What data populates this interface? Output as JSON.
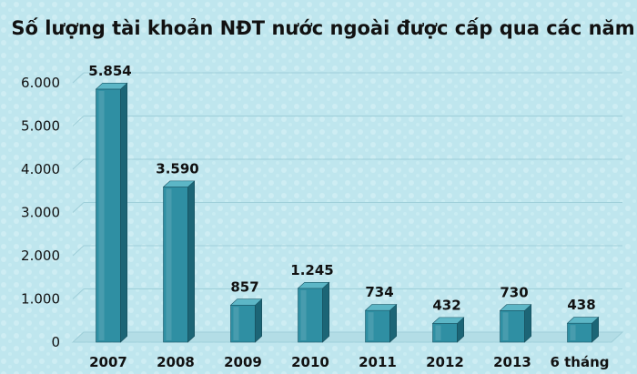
{
  "chart_data": {
    "type": "bar",
    "title": "Số lượng tài khoản NĐT nước ngoài được cấp qua các năm",
    "xlabel": "",
    "ylabel": "",
    "categories": [
      "2007",
      "2008",
      "2009",
      "2010",
      "2011",
      "2012",
      "2013",
      "6 tháng"
    ],
    "values": [
      5854,
      3590,
      857,
      1245,
      734,
      432,
      730,
      438
    ],
    "value_labels": [
      "5.854",
      "3.590",
      "857",
      "1.245",
      "734",
      "432",
      "730",
      "438"
    ],
    "ylim": [
      0,
      6000
    ],
    "yticks": [
      0,
      1000,
      2000,
      3000,
      4000,
      5000,
      6000
    ],
    "ytick_labels": [
      "0",
      "1.000",
      "2.000",
      "3.000",
      "4.000",
      "5.000",
      "6.000"
    ],
    "grid": true,
    "legend": "none",
    "colors": {
      "bar_front": "#2f8fa3",
      "bar_side": "#1c6576",
      "bar_top": "#5cb6c6",
      "background": "#bfe6ee",
      "gridline": "#9fcfd9"
    }
  }
}
